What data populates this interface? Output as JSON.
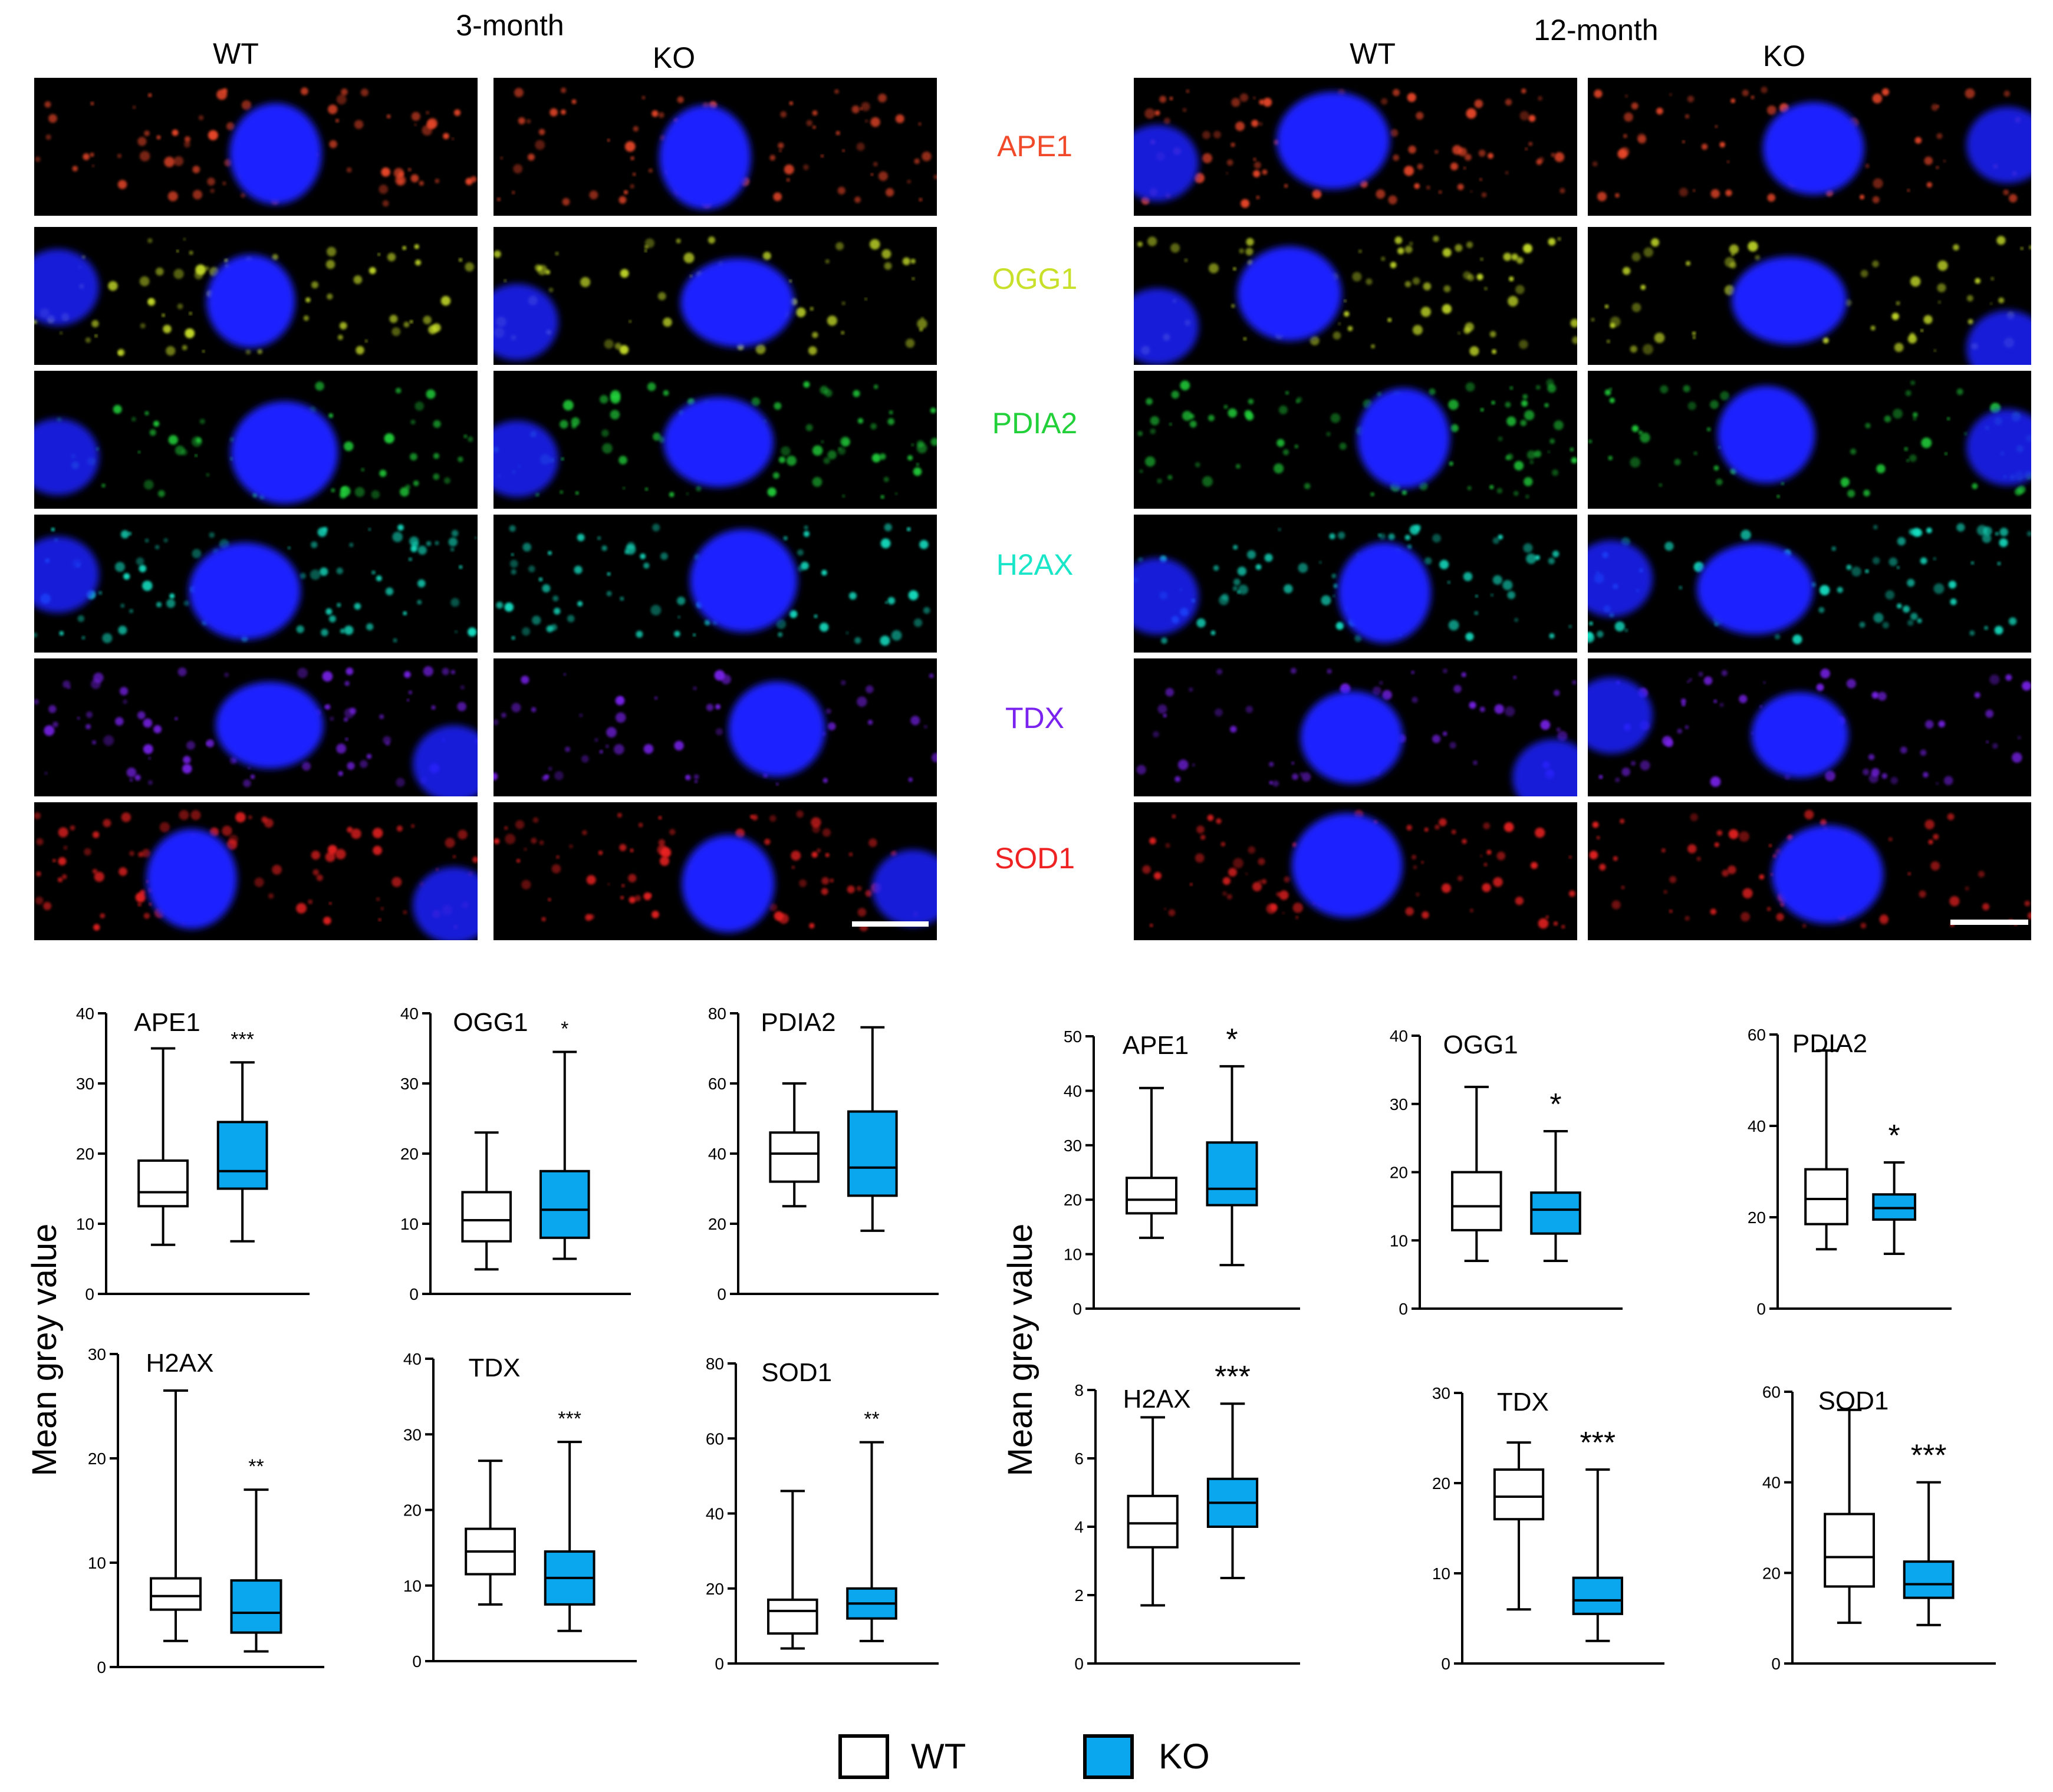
{
  "headers": {
    "left_period": "3-month",
    "right_period": "12-month",
    "wt": "WT",
    "ko": "KO"
  },
  "markers": [
    {
      "name": "APE1",
      "color": "#f04a2a"
    },
    {
      "name": "OGG1",
      "color": "#c9e02a"
    },
    {
      "name": "PDIA2",
      "color": "#22d03a"
    },
    {
      "name": "H2AX",
      "color": "#19e6c8"
    },
    {
      "name": "TDX",
      "color": "#7a22ee"
    },
    {
      "name": "SOD1",
      "color": "#ee2222"
    }
  ],
  "colors": {
    "wt_fill": "#ffffff",
    "ko_fill": "#0aa6ee",
    "nucleus": "#1a22ff",
    "panel_bg": "#000000"
  },
  "y_label": "Mean grey value",
  "legend": {
    "wt": "WT",
    "ko": "KO"
  },
  "chart_data": [
    {
      "type": "box",
      "title": "APE1",
      "group": "3-month",
      "ylim": [
        0,
        40
      ],
      "yticks": [
        0,
        10,
        20,
        30,
        40
      ],
      "sig": "***",
      "series": [
        {
          "name": "WT",
          "min": 7,
          "q1": 12.5,
          "median": 14.5,
          "q3": 19,
          "max": 35
        },
        {
          "name": "KO",
          "min": 7.5,
          "q1": 15,
          "median": 17.5,
          "q3": 24.5,
          "max": 33
        }
      ]
    },
    {
      "type": "box",
      "title": "OGG1",
      "group": "3-month",
      "ylim": [
        0,
        40
      ],
      "yticks": [
        0,
        10,
        20,
        30,
        40
      ],
      "sig": "*",
      "series": [
        {
          "name": "WT",
          "min": 3.5,
          "q1": 7.5,
          "median": 10.5,
          "q3": 14.5,
          "max": 23
        },
        {
          "name": "KO",
          "min": 5,
          "q1": 8,
          "median": 12,
          "q3": 17.5,
          "max": 34.5
        }
      ]
    },
    {
      "type": "box",
      "title": "PDIA2",
      "group": "3-month",
      "ylim": [
        0,
        80
      ],
      "yticks": [
        0,
        20,
        40,
        60,
        80
      ],
      "sig": "",
      "series": [
        {
          "name": "WT",
          "min": 25,
          "q1": 32,
          "median": 40,
          "q3": 46,
          "max": 60
        },
        {
          "name": "KO",
          "min": 18,
          "q1": 28,
          "median": 36,
          "q3": 52,
          "max": 76
        }
      ]
    },
    {
      "type": "box",
      "title": "H2AX",
      "group": "3-month",
      "ylim": [
        0,
        30
      ],
      "yticks": [
        0,
        10,
        20,
        30
      ],
      "sig": "**",
      "series": [
        {
          "name": "WT",
          "min": 2.5,
          "q1": 5.5,
          "median": 6.8,
          "q3": 8.5,
          "max": 26.5
        },
        {
          "name": "KO",
          "min": 1.5,
          "q1": 3.3,
          "median": 5.2,
          "q3": 8.3,
          "max": 17
        }
      ]
    },
    {
      "type": "box",
      "title": "TDX",
      "group": "3-month",
      "ylim": [
        0,
        40
      ],
      "yticks": [
        0,
        10,
        20,
        30,
        40
      ],
      "sig": "***",
      "series": [
        {
          "name": "WT",
          "min": 7.5,
          "q1": 11.5,
          "median": 14.5,
          "q3": 17.5,
          "max": 26.5
        },
        {
          "name": "KO",
          "min": 4,
          "q1": 7.5,
          "median": 11,
          "q3": 14.5,
          "max": 29
        }
      ]
    },
    {
      "type": "box",
      "title": "SOD1",
      "group": "3-month",
      "ylim": [
        0,
        80
      ],
      "yticks": [
        0,
        20,
        40,
        60,
        80
      ],
      "sig": "**",
      "series": [
        {
          "name": "WT",
          "min": 4,
          "q1": 8,
          "median": 14,
          "q3": 17,
          "max": 46
        },
        {
          "name": "KO",
          "min": 6,
          "q1": 12,
          "median": 16,
          "q3": 20,
          "max": 59
        }
      ]
    },
    {
      "type": "box",
      "title": "APE1",
      "group": "12-month",
      "ylim": [
        0,
        50
      ],
      "yticks": [
        0,
        10,
        20,
        30,
        40,
        50
      ],
      "sig": "*",
      "series": [
        {
          "name": "WT",
          "min": 13,
          "q1": 17.5,
          "median": 20,
          "q3": 24,
          "max": 40.5
        },
        {
          "name": "KO",
          "min": 8,
          "q1": 19,
          "median": 22,
          "q3": 30.5,
          "max": 44.5
        }
      ]
    },
    {
      "type": "box",
      "title": "OGG1",
      "group": "12-month",
      "ylim": [
        0,
        40
      ],
      "yticks": [
        0,
        10,
        20,
        30,
        40
      ],
      "sig": "*",
      "series": [
        {
          "name": "WT",
          "min": 7,
          "q1": 11.5,
          "median": 15,
          "q3": 20,
          "max": 32.5
        },
        {
          "name": "KO",
          "min": 7,
          "q1": 11,
          "median": 14.5,
          "q3": 17,
          "max": 26
        }
      ]
    },
    {
      "type": "box",
      "title": "PDIA2",
      "group": "12-month",
      "ylim": [
        0,
        60
      ],
      "yticks": [
        0,
        20,
        40,
        60
      ],
      "sig": "*",
      "series": [
        {
          "name": "WT",
          "min": 13,
          "q1": 18.5,
          "median": 24,
          "q3": 30.5,
          "max": 56.5
        },
        {
          "name": "KO",
          "min": 12,
          "q1": 19.5,
          "median": 22,
          "q3": 25,
          "max": 32
        }
      ]
    },
    {
      "type": "box",
      "title": "H2AX",
      "group": "12-month",
      "ylim": [
        0,
        8
      ],
      "yticks": [
        0,
        2,
        4,
        6,
        8
      ],
      "sig": "***",
      "series": [
        {
          "name": "WT",
          "min": 1.7,
          "q1": 3.4,
          "median": 4.1,
          "q3": 4.9,
          "max": 7.2
        },
        {
          "name": "KO",
          "min": 2.5,
          "q1": 4,
          "median": 4.7,
          "q3": 5.4,
          "max": 7.6
        }
      ]
    },
    {
      "type": "box",
      "title": "TDX",
      "group": "12-month",
      "ylim": [
        0,
        30
      ],
      "yticks": [
        0,
        10,
        20,
        30
      ],
      "sig": "***",
      "series": [
        {
          "name": "WT",
          "min": 6,
          "q1": 16,
          "median": 18.5,
          "q3": 21.5,
          "max": 24.5
        },
        {
          "name": "KO",
          "min": 2.5,
          "q1": 5.5,
          "median": 7,
          "q3": 9.5,
          "max": 21.5
        }
      ]
    },
    {
      "type": "box",
      "title": "SOD1",
      "group": "12-month",
      "ylim": [
        0,
        60
      ],
      "yticks": [
        0,
        20,
        40,
        60
      ],
      "sig": "***",
      "series": [
        {
          "name": "WT",
          "min": 9,
          "q1": 17,
          "median": 23.5,
          "q3": 33,
          "max": 56
        },
        {
          "name": "KO",
          "min": 8.5,
          "q1": 14.5,
          "median": 17.5,
          "q3": 22.5,
          "max": 40
        }
      ]
    }
  ]
}
